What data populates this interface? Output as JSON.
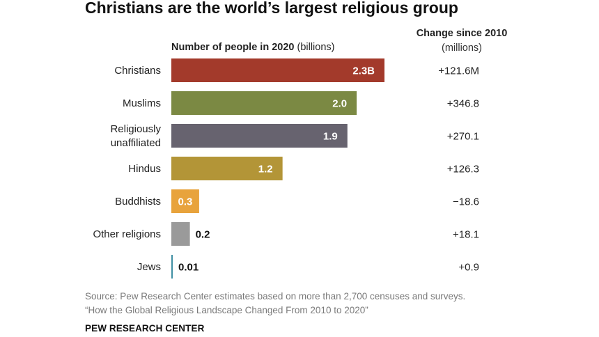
{
  "title": "Christians are the world’s largest religious group",
  "left_header": {
    "bold": "Number of people in 2020",
    "unit": "(billions)"
  },
  "right_header": {
    "line1": "Change since 2010",
    "line2": "(millions)"
  },
  "chart_data": {
    "type": "bar",
    "orientation": "horizontal",
    "categories": [
      "Christians",
      "Muslims",
      "Religiously unaffiliated",
      "Hindus",
      "Buddhists",
      "Other religions",
      "Jews"
    ],
    "category_lines": [
      [
        "Christians"
      ],
      [
        "Muslims"
      ],
      [
        "Religiously",
        "unaffiliated"
      ],
      [
        "Hindus"
      ],
      [
        "Buddhists"
      ],
      [
        "Other religions"
      ],
      [
        "Jews"
      ]
    ],
    "values": [
      2.3,
      2.0,
      1.9,
      1.2,
      0.3,
      0.2,
      0.01
    ],
    "value_labels": [
      "2.3B",
      "2.0",
      "1.9",
      "1.2",
      "0.3",
      "0.2",
      "0.01"
    ],
    "label_inside": [
      true,
      true,
      true,
      true,
      true,
      false,
      false
    ],
    "colors": [
      "#a33a2b",
      "#7b8943",
      "#67636f",
      "#b39537",
      "#e8a33c",
      "#9a9a9a",
      "#3f8fa3"
    ],
    "change_since_2010": [
      "+121.6M",
      "+346.8",
      "+270.1",
      "+126.3",
      "−18.6",
      "+18.1",
      "+0.9"
    ],
    "xlim": [
      0,
      2.3
    ]
  },
  "source": {
    "line1": "Source: Pew Research Center estimates based on more than 2,700 censuses and surveys.",
    "line2": "“How the Global Religious Landscape Changed From 2010 to 2020”"
  },
  "brand": "PEW RESEARCH CENTER"
}
